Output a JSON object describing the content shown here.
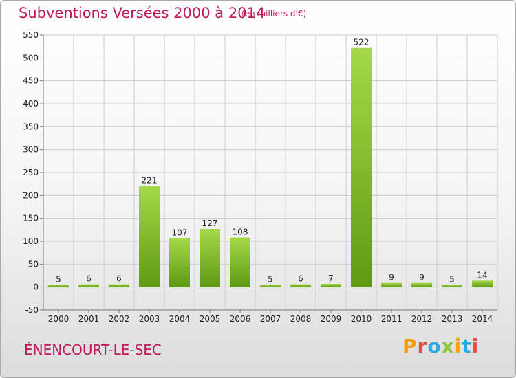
{
  "header": {
    "title": "Subventions Versées 2000 à 2014",
    "unit_note": "(en milliers d'€)"
  },
  "footer": {
    "commune": "ÉNENCOURT-LE-SEC",
    "logo_text": "Proxiti",
    "logo_colors": [
      "#f39c12",
      "#e84c3d",
      "#27a9e1",
      "#8cc63f",
      "#f7a600",
      "#27a9e1",
      "#e84c3d"
    ]
  },
  "chart_data": {
    "type": "bar",
    "title": "Subventions Versées 2000 à 2014",
    "xlabel": "",
    "ylabel": "",
    "categories": [
      "2000",
      "2001",
      "2002",
      "2003",
      "2004",
      "2005",
      "2006",
      "2007",
      "2008",
      "2009",
      "2010",
      "2011",
      "2012",
      "2013",
      "2014"
    ],
    "values": [
      5,
      6,
      6,
      221,
      107,
      127,
      108,
      5,
      6,
      7,
      522,
      9,
      9,
      5,
      14
    ],
    "data_labels": [
      "5",
      "6",
      "6",
      "221",
      "107",
      "127",
      "108",
      "5",
      "6",
      "7",
      "522",
      "9",
      "9",
      "5",
      "14"
    ],
    "ylim": [
      -50,
      550
    ],
    "yticks": [
      -50,
      0,
      50,
      100,
      150,
      200,
      250,
      300,
      350,
      400,
      450,
      500,
      550
    ],
    "ytick_labels": [
      "-50",
      "0",
      "50",
      "100",
      "150",
      "200",
      "250",
      "300",
      "350",
      "400",
      "450",
      "500",
      "550"
    ],
    "grid": true,
    "colors": {
      "bar_light": "#a6d94a",
      "bar_dark": "#5e9a12",
      "grid": "#cccccc",
      "axis": "#777777"
    }
  }
}
